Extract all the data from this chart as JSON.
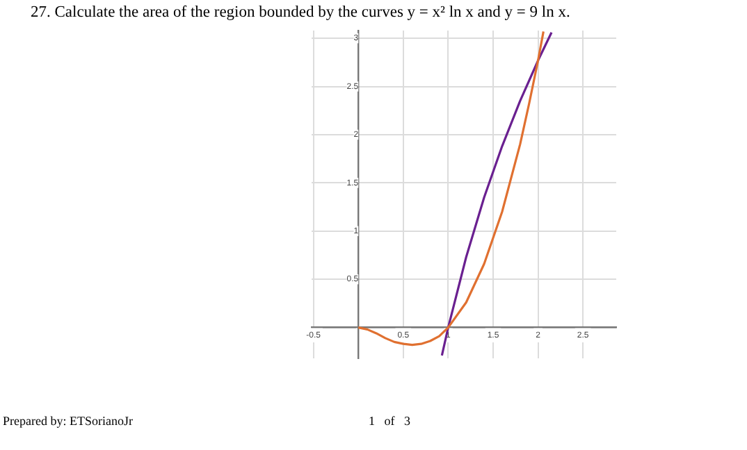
{
  "chart_data": {
    "type": "line",
    "title": "27. Calculate the area of the region bounded by the curves y = x² ln x and y = 9 ln x.",
    "series": [
      {
        "color": "#e07030",
        "x": [
          0,
          0.1,
          0.2,
          0.3,
          0.4,
          0.5,
          0.6,
          0.7,
          0.8,
          0.9,
          1,
          1.2,
          1.4,
          1.6,
          1.8,
          1.9,
          2,
          2.06
        ],
        "values": [
          0,
          -0.02,
          -0.06,
          -0.11,
          -0.15,
          -0.17,
          -0.18,
          -0.17,
          -0.14,
          -0.09,
          0,
          0.26,
          0.66,
          1.2,
          1.9,
          2.32,
          2.77,
          3.07
        ]
      },
      {
        "color": "#6a2090",
        "x": [
          0.93,
          1,
          1.2,
          1.4,
          1.6,
          1.8,
          2,
          2.15
        ],
        "values": [
          -0.29,
          0,
          0.73,
          1.35,
          1.88,
          2.35,
          2.77,
          3.06
        ]
      }
    ],
    "xlim": [
      -0.52,
      2.87
    ],
    "ylim": [
      -0.32,
      3.08
    ],
    "xticks": [
      -0.5,
      {
        "value": 0,
        "label": null
      },
      0.5,
      1,
      1.5,
      2,
      2.5
    ],
    "yticks": [
      {
        "value": 0,
        "label": null
      },
      0.5,
      1,
      1.5,
      2,
      2.5,
      3
    ],
    "grid": true,
    "marker": "none",
    "line_style": "solid",
    "legend": false,
    "annotations": [
      "Prepared by: ETSorianoJr",
      "1   of   3"
    ]
  }
}
